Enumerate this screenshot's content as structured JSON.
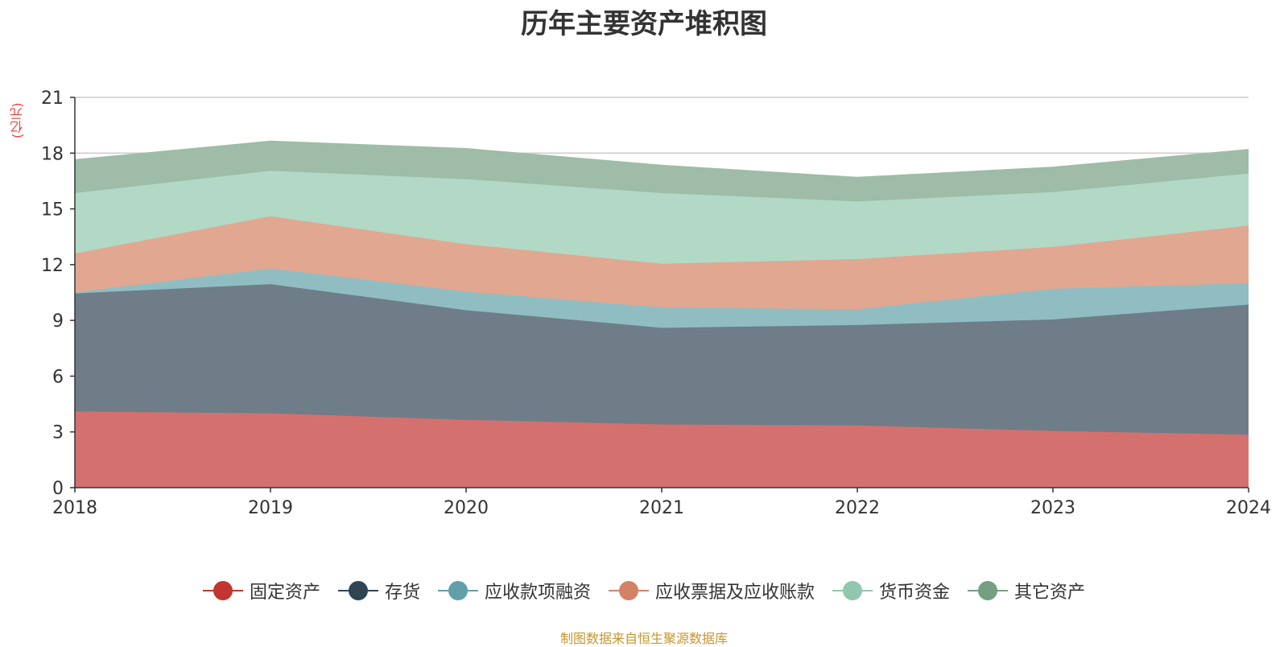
{
  "chart_data": {
    "type": "area",
    "stacked": true,
    "title": "历年主要资产堆积图",
    "ylabel": "(亿元)",
    "xlabel": "",
    "categories": [
      "2018",
      "2019",
      "2020",
      "2021",
      "2022",
      "2023",
      "2024"
    ],
    "ylim": [
      0,
      21
    ],
    "yticks": [
      0,
      3,
      6,
      9,
      12,
      15,
      18,
      21
    ],
    "grid": true,
    "legend_position": "bottom",
    "series": [
      {
        "name": "固定资产",
        "color": "#c23531",
        "fill": "#d4716e",
        "values": [
          4.1,
          4.0,
          3.65,
          3.4,
          3.35,
          3.05,
          2.85
        ]
      },
      {
        "name": "存货",
        "color": "#2f4554",
        "fill": "#6f7d88",
        "values": [
          6.35,
          6.95,
          5.9,
          5.2,
          5.4,
          6.0,
          7.0
        ]
      },
      {
        "name": "应收款项融资",
        "color": "#61a0a8",
        "fill": "#90bdc2",
        "values": [
          0.05,
          0.85,
          1.0,
          1.1,
          0.85,
          1.65,
          1.15
        ]
      },
      {
        "name": "应收票据及应收账款",
        "color": "#d48265",
        "fill": "#e2a791",
        "values": [
          2.1,
          2.8,
          2.55,
          2.35,
          2.7,
          2.25,
          3.1
        ]
      },
      {
        "name": "货币资金",
        "color": "#91c7ae",
        "fill": "#b1d9c6",
        "values": [
          3.25,
          2.45,
          3.5,
          3.8,
          3.1,
          2.95,
          2.8
        ]
      },
      {
        "name": "其它资产",
        "color": "#749f83",
        "fill": "#9ebca8",
        "values": [
          1.8,
          1.6,
          1.65,
          1.5,
          1.3,
          1.35,
          1.3
        ]
      }
    ]
  },
  "footer": {
    "source": "制图数据来自恒生聚源数据库"
  }
}
